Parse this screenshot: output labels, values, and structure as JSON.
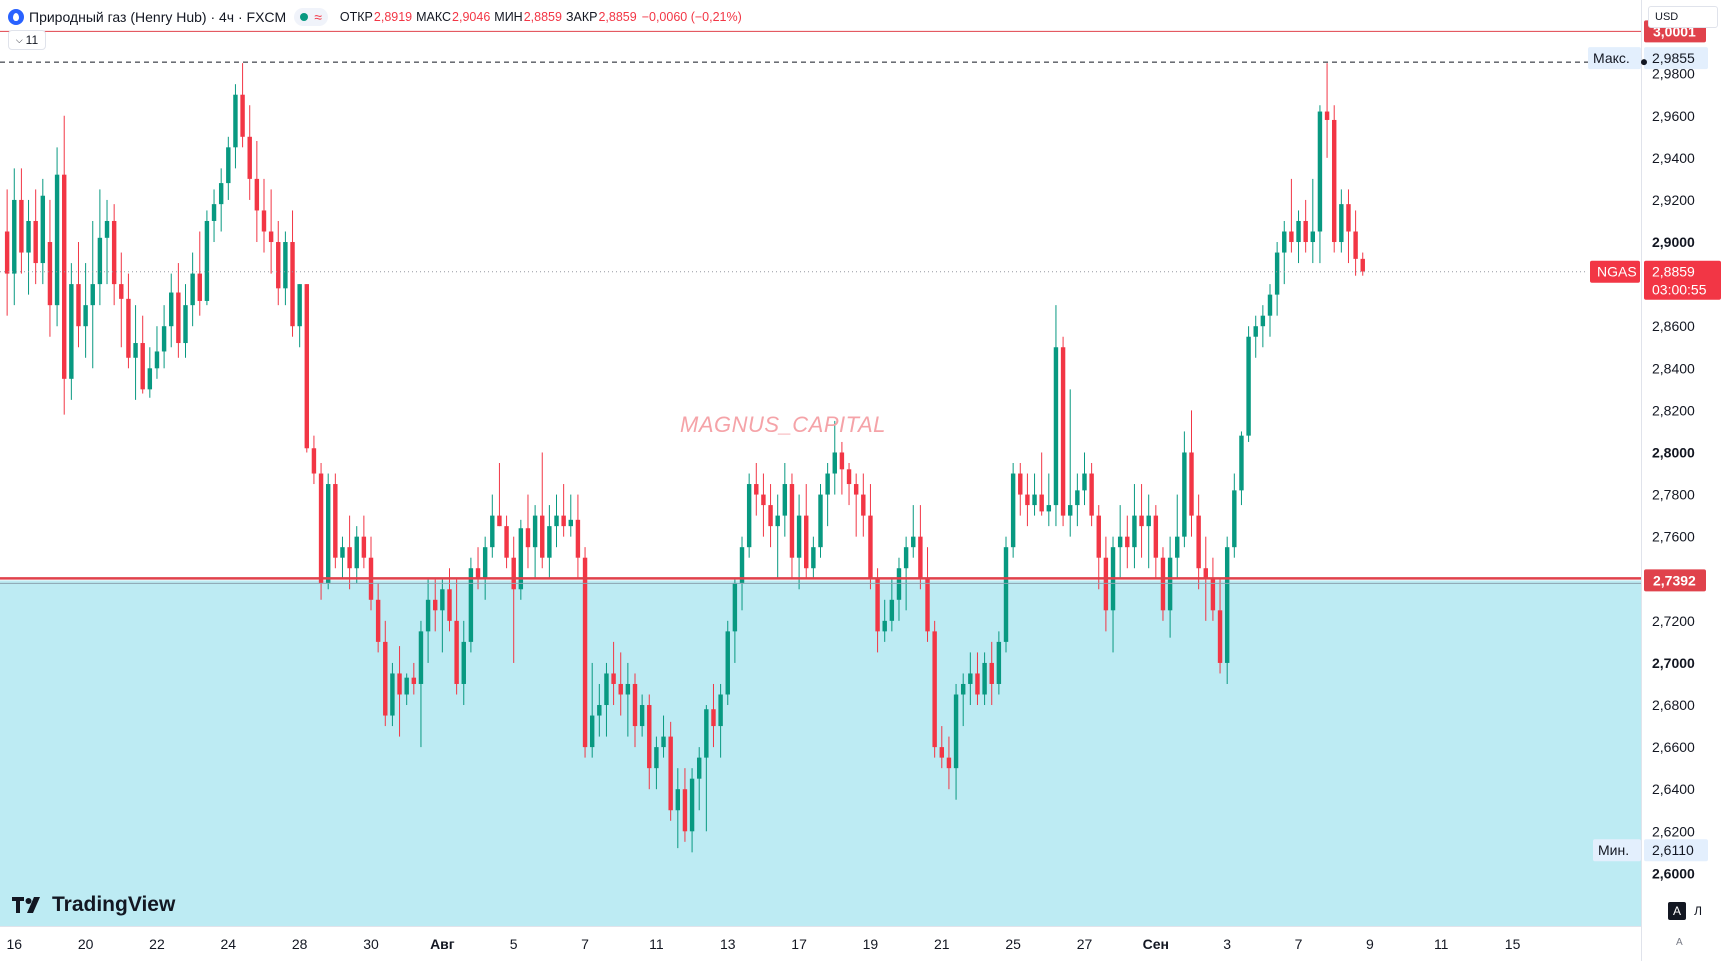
{
  "header": {
    "symbol_title": "Природный газ (Henry Hub) · 4ч · FXCM",
    "status_icon": "market-open-dot",
    "replay_icon": "approx-icon",
    "open_label": "ОТКР",
    "open_value": "2,8919",
    "high_label": "МАКС",
    "high_value": "2,9046",
    "low_label": "МИН",
    "low_value": "2,8859",
    "close_label": "ЗАКР",
    "close_value": "2,8859",
    "change": "−0,0060 (−0,21%)",
    "indicators_toggle": "11"
  },
  "currency": "USD",
  "watermark": "MAGNUS_CAPITAL",
  "logo": "TradingView",
  "scale_buttons": {
    "auto": "A",
    "log": "Л",
    "settings": "A"
  },
  "colors": {
    "up": "#089981",
    "down": "#f23645",
    "zone": "#bdebf3",
    "level": "#e0424c",
    "background": "#ffffff"
  },
  "chart_data": {
    "type": "candlestick",
    "y_range": [
      2.575,
      3.015
    ],
    "x_range": [
      -0.4,
      45.6
    ],
    "time_axis": {
      "labels": [
        "16",
        "20",
        "22",
        "24",
        "28",
        "30",
        "Авг",
        "5",
        "7",
        "11",
        "13",
        "17",
        "19",
        "21",
        "25",
        "27",
        "Сен",
        "3",
        "7",
        "9",
        "11",
        "15"
      ],
      "positions": [
        0,
        2,
        4,
        6,
        8,
        10,
        12,
        14,
        16,
        18,
        20,
        22,
        24,
        26,
        28,
        30,
        32,
        34,
        36,
        38,
        40,
        42
      ],
      "bold": [
        "Авг",
        "Сен"
      ]
    },
    "price_axis": {
      "ticks": [
        2.6,
        2.62,
        2.64,
        2.66,
        2.68,
        2.7,
        2.72,
        2.74,
        2.76,
        2.78,
        2.8,
        2.82,
        2.84,
        2.86,
        2.88,
        2.9,
        2.92,
        2.94,
        2.96,
        2.98
      ],
      "labels": [
        "2,6000",
        "2,6200",
        "2,6400",
        "2,6600",
        "2,6800",
        "2,7000",
        "2,7200",
        "2,7400",
        "2,7600",
        "2,7800",
        "2,8000",
        "2,8200",
        "2,8400",
        "2,8600",
        "2,8800",
        "2,9000",
        "2,9200",
        "2,9400",
        "2,9600",
        "2,9800"
      ],
      "bold": [
        "2,6000",
        "2,7000",
        "2,8000",
        "2,9000"
      ]
    },
    "levels": [
      {
        "name": "resistance",
        "value": 3.0001,
        "label": "3,0001"
      },
      {
        "name": "support",
        "value": 2.7392,
        "label": "2,7392"
      }
    ],
    "marks": {
      "high": {
        "label": "Макс.",
        "value": 2.9855,
        "text": "2,9855"
      },
      "low": {
        "label": "Мин.",
        "value": 2.611,
        "text": "2,6110"
      },
      "last": {
        "symbol": "NGAS",
        "value": 2.8859,
        "text": "2,8859",
        "countdown": "03:00:55"
      }
    },
    "candles": [
      [
        -0.2,
        2.905,
        2.925,
        2.865,
        2.885
      ],
      [
        0,
        2.885,
        2.935,
        2.87,
        2.92
      ],
      [
        0.2,
        2.92,
        2.935,
        2.885,
        2.895
      ],
      [
        0.4,
        2.895,
        2.92,
        2.875,
        2.91
      ],
      [
        0.6,
        2.91,
        2.925,
        2.88,
        2.89
      ],
      [
        0.8,
        2.89,
        2.93,
        2.88,
        2.922
      ],
      [
        1,
        2.9,
        2.92,
        2.855,
        2.87
      ],
      [
        1.2,
        2.87,
        2.945,
        2.86,
        2.932
      ],
      [
        1.4,
        2.932,
        2.96,
        2.818,
        2.835
      ],
      [
        1.6,
        2.835,
        2.89,
        2.825,
        2.88
      ],
      [
        1.8,
        2.88,
        2.9,
        2.85,
        2.86
      ],
      [
        2,
        2.86,
        2.89,
        2.845,
        2.87
      ],
      [
        2.2,
        2.87,
        2.91,
        2.84,
        2.88
      ],
      [
        2.4,
        2.88,
        2.925,
        2.87,
        2.902
      ],
      [
        2.6,
        2.902,
        2.92,
        2.88,
        2.91
      ],
      [
        2.8,
        2.91,
        2.918,
        2.87,
        2.88
      ],
      [
        3,
        2.88,
        2.895,
        2.85,
        2.873
      ],
      [
        3.2,
        2.873,
        2.885,
        2.84,
        2.845
      ],
      [
        3.4,
        2.845,
        2.87,
        2.825,
        2.852
      ],
      [
        3.6,
        2.852,
        2.865,
        2.828,
        2.83
      ],
      [
        3.8,
        2.83,
        2.85,
        2.826,
        2.84
      ],
      [
        4,
        2.84,
        2.86,
        2.835,
        2.848
      ],
      [
        4.2,
        2.848,
        2.87,
        2.84,
        2.86
      ],
      [
        4.4,
        2.86,
        2.885,
        2.85,
        2.876
      ],
      [
        4.6,
        2.876,
        2.89,
        2.845,
        2.852
      ],
      [
        4.8,
        2.852,
        2.88,
        2.845,
        2.87
      ],
      [
        5,
        2.87,
        2.895,
        2.86,
        2.885
      ],
      [
        5.2,
        2.885,
        2.905,
        2.865,
        2.872
      ],
      [
        5.4,
        2.872,
        2.915,
        2.87,
        2.91
      ],
      [
        5.6,
        2.91,
        2.925,
        2.9,
        2.918
      ],
      [
        5.8,
        2.918,
        2.935,
        2.905,
        2.928
      ],
      [
        6,
        2.928,
        2.95,
        2.92,
        2.945
      ],
      [
        6.2,
        2.945,
        2.975,
        2.935,
        2.97
      ],
      [
        6.4,
        2.97,
        2.985,
        2.945,
        2.95
      ],
      [
        6.6,
        2.95,
        2.965,
        2.92,
        2.93
      ],
      [
        6.8,
        2.93,
        2.948,
        2.9,
        2.915
      ],
      [
        7,
        2.915,
        2.93,
        2.895,
        2.905
      ],
      [
        7.2,
        2.905,
        2.925,
        2.885,
        2.9
      ],
      [
        7.4,
        2.9,
        2.91,
        2.87,
        2.878
      ],
      [
        7.6,
        2.878,
        2.905,
        2.87,
        2.9
      ],
      [
        7.8,
        2.9,
        2.915,
        2.855,
        2.86
      ],
      [
        8,
        2.86,
        2.88,
        2.85,
        2.88
      ],
      [
        8.2,
        2.88,
        2.88,
        2.8,
        2.802
      ],
      [
        8.4,
        2.802,
        2.808,
        2.785,
        2.79
      ],
      [
        8.6,
        2.79,
        2.795,
        2.73,
        2.738
      ],
      [
        8.8,
        2.738,
        2.79,
        2.735,
        2.785
      ],
      [
        9,
        2.785,
        2.79,
        2.745,
        2.75
      ],
      [
        9.2,
        2.75,
        2.76,
        2.74,
        2.755
      ],
      [
        9.4,
        2.755,
        2.77,
        2.735,
        2.745
      ],
      [
        9.6,
        2.745,
        2.765,
        2.738,
        2.76
      ],
      [
        9.8,
        2.76,
        2.77,
        2.745,
        2.75
      ],
      [
        10,
        2.75,
        2.76,
        2.725,
        2.73
      ],
      [
        10.2,
        2.73,
        2.738,
        2.705,
        2.71
      ],
      [
        10.4,
        2.71,
        2.72,
        2.67,
        2.675
      ],
      [
        10.6,
        2.675,
        2.7,
        2.67,
        2.695
      ],
      [
        10.8,
        2.695,
        2.708,
        2.665,
        2.685
      ],
      [
        11,
        2.685,
        2.695,
        2.68,
        2.693
      ],
      [
        11.2,
        2.693,
        2.7,
        2.685,
        2.69
      ],
      [
        11.4,
        2.69,
        2.72,
        2.66,
        2.715
      ],
      [
        11.6,
        2.715,
        2.74,
        2.7,
        2.73
      ],
      [
        11.8,
        2.73,
        2.74,
        2.715,
        2.725
      ],
      [
        12,
        2.725,
        2.74,
        2.705,
        2.735
      ],
      [
        12.2,
        2.735,
        2.745,
        2.715,
        2.72
      ],
      [
        12.4,
        2.72,
        2.74,
        2.685,
        2.69
      ],
      [
        12.6,
        2.69,
        2.72,
        2.68,
        2.71
      ],
      [
        12.8,
        2.71,
        2.75,
        2.705,
        2.745
      ],
      [
        13,
        2.745,
        2.755,
        2.735,
        2.74
      ],
      [
        13.2,
        2.74,
        2.76,
        2.73,
        2.755
      ],
      [
        13.4,
        2.755,
        2.78,
        2.75,
        2.77
      ],
      [
        13.6,
        2.77,
        2.795,
        2.765,
        2.765
      ],
      [
        13.8,
        2.765,
        2.77,
        2.745,
        2.75
      ],
      [
        14,
        2.75,
        2.76,
        2.7,
        2.735
      ],
      [
        14.2,
        2.735,
        2.768,
        2.73,
        2.764
      ],
      [
        14.4,
        2.764,
        2.78,
        2.745,
        2.755
      ],
      [
        14.6,
        2.755,
        2.775,
        2.74,
        2.77
      ],
      [
        14.8,
        2.77,
        2.8,
        2.745,
        2.75
      ],
      [
        15,
        2.75,
        2.775,
        2.74,
        2.765
      ],
      [
        15.2,
        2.765,
        2.78,
        2.755,
        2.77
      ],
      [
        15.4,
        2.77,
        2.785,
        2.76,
        2.765
      ],
      [
        15.6,
        2.765,
        2.78,
        2.76,
        2.768
      ],
      [
        15.8,
        2.768,
        2.78,
        2.74,
        2.75
      ],
      [
        16,
        2.75,
        2.755,
        2.655,
        2.66
      ],
      [
        16.2,
        2.66,
        2.7,
        2.655,
        2.675
      ],
      [
        16.4,
        2.675,
        2.69,
        2.665,
        2.68
      ],
      [
        16.6,
        2.68,
        2.7,
        2.665,
        2.695
      ],
      [
        16.8,
        2.695,
        2.71,
        2.68,
        2.69
      ],
      [
        17,
        2.69,
        2.705,
        2.675,
        2.685
      ],
      [
        17.2,
        2.685,
        2.7,
        2.665,
        2.69
      ],
      [
        17.4,
        2.69,
        2.695,
        2.66,
        2.67
      ],
      [
        17.6,
        2.67,
        2.685,
        2.665,
        2.68
      ],
      [
        17.8,
        2.68,
        2.685,
        2.64,
        2.65
      ],
      [
        18,
        2.65,
        2.665,
        2.64,
        2.66
      ],
      [
        18.2,
        2.66,
        2.675,
        2.655,
        2.665
      ],
      [
        18.4,
        2.665,
        2.672,
        2.625,
        2.63
      ],
      [
        18.6,
        2.63,
        2.65,
        2.612,
        2.64
      ],
      [
        18.8,
        2.64,
        2.65,
        2.615,
        2.62
      ],
      [
        19,
        2.62,
        2.65,
        2.61,
        2.645
      ],
      [
        19.2,
        2.645,
        2.66,
        2.63,
        2.655
      ],
      [
        19.4,
        2.655,
        2.68,
        2.62,
        2.678
      ],
      [
        19.6,
        2.678,
        2.69,
        2.66,
        2.67
      ],
      [
        19.8,
        2.67,
        2.69,
        2.655,
        2.685
      ],
      [
        20,
        2.685,
        2.72,
        2.68,
        2.715
      ],
      [
        20.2,
        2.715,
        2.74,
        2.7,
        2.738
      ],
      [
        20.4,
        2.738,
        2.76,
        2.725,
        2.755
      ],
      [
        20.6,
        2.755,
        2.79,
        2.75,
        2.785
      ],
      [
        20.8,
        2.785,
        2.795,
        2.77,
        2.78
      ],
      [
        21,
        2.78,
        2.79,
        2.76,
        2.775
      ],
      [
        21.2,
        2.775,
        2.785,
        2.755,
        2.765
      ],
      [
        21.4,
        2.765,
        2.78,
        2.74,
        2.77
      ],
      [
        21.6,
        2.77,
        2.795,
        2.76,
        2.785
      ],
      [
        21.8,
        2.785,
        2.79,
        2.74,
        2.75
      ],
      [
        22,
        2.75,
        2.78,
        2.735,
        2.77
      ],
      [
        22.2,
        2.77,
        2.785,
        2.74,
        2.745
      ],
      [
        22.4,
        2.745,
        2.76,
        2.74,
        2.755
      ],
      [
        22.6,
        2.755,
        2.785,
        2.75,
        2.78
      ],
      [
        22.8,
        2.78,
        2.795,
        2.765,
        2.79
      ],
      [
        23,
        2.79,
        2.815,
        2.78,
        2.8
      ],
      [
        23.2,
        2.8,
        2.805,
        2.78,
        2.792
      ],
      [
        23.4,
        2.792,
        2.795,
        2.775,
        2.785
      ],
      [
        23.6,
        2.785,
        2.79,
        2.76,
        2.78
      ],
      [
        23.8,
        2.78,
        2.79,
        2.76,
        2.77
      ],
      [
        24,
        2.77,
        2.785,
        2.735,
        2.74
      ],
      [
        24.2,
        2.74,
        2.745,
        2.705,
        2.715
      ],
      [
        24.4,
        2.715,
        2.73,
        2.71,
        2.72
      ],
      [
        24.6,
        2.72,
        2.74,
        2.715,
        2.73
      ],
      [
        24.8,
        2.73,
        2.75,
        2.72,
        2.745
      ],
      [
        25,
        2.745,
        2.76,
        2.725,
        2.755
      ],
      [
        25.2,
        2.755,
        2.775,
        2.75,
        2.76
      ],
      [
        25.4,
        2.76,
        2.775,
        2.735,
        2.74
      ],
      [
        25.6,
        2.74,
        2.755,
        2.71,
        2.715
      ],
      [
        25.8,
        2.715,
        2.72,
        2.655,
        2.66
      ],
      [
        26,
        2.66,
        2.67,
        2.65,
        2.655
      ],
      [
        26.2,
        2.655,
        2.665,
        2.64,
        2.65
      ],
      [
        26.4,
        2.65,
        2.69,
        2.635,
        2.685
      ],
      [
        26.6,
        2.685,
        2.695,
        2.67,
        2.69
      ],
      [
        26.8,
        2.69,
        2.705,
        2.68,
        2.695
      ],
      [
        27,
        2.695,
        2.705,
        2.68,
        2.685
      ],
      [
        27.2,
        2.685,
        2.705,
        2.68,
        2.7
      ],
      [
        27.4,
        2.7,
        2.71,
        2.68,
        2.69
      ],
      [
        27.6,
        2.69,
        2.715,
        2.685,
        2.71
      ],
      [
        27.8,
        2.71,
        2.76,
        2.705,
        2.755
      ],
      [
        28,
        2.755,
        2.795,
        2.75,
        2.79
      ],
      [
        28.2,
        2.79,
        2.795,
        2.77,
        2.78
      ],
      [
        28.4,
        2.78,
        2.79,
        2.765,
        2.775
      ],
      [
        28.6,
        2.775,
        2.79,
        2.77,
        2.78
      ],
      [
        28.8,
        2.78,
        2.8,
        2.77,
        2.772
      ],
      [
        29,
        2.772,
        2.79,
        2.765,
        2.775
      ],
      [
        29.2,
        2.775,
        2.87,
        2.765,
        2.85
      ],
      [
        29.4,
        2.85,
        2.855,
        2.765,
        2.77
      ],
      [
        29.6,
        2.77,
        2.83,
        2.76,
        2.775
      ],
      [
        29.8,
        2.775,
        2.79,
        2.765,
        2.782
      ],
      [
        30,
        2.782,
        2.8,
        2.775,
        2.79
      ],
      [
        30.2,
        2.79,
        2.795,
        2.765,
        2.77
      ],
      [
        30.4,
        2.77,
        2.775,
        2.735,
        2.75
      ],
      [
        30.6,
        2.75,
        2.76,
        2.715,
        2.725
      ],
      [
        30.8,
        2.725,
        2.76,
        2.705,
        2.755
      ],
      [
        31,
        2.755,
        2.775,
        2.74,
        2.76
      ],
      [
        31.2,
        2.76,
        2.77,
        2.745,
        2.755
      ],
      [
        31.4,
        2.755,
        2.785,
        2.745,
        2.77
      ],
      [
        31.6,
        2.77,
        2.785,
        2.75,
        2.765
      ],
      [
        31.8,
        2.765,
        2.78,
        2.745,
        2.77
      ],
      [
        32,
        2.77,
        2.775,
        2.74,
        2.75
      ],
      [
        32.2,
        2.75,
        2.755,
        2.72,
        2.725
      ],
      [
        32.4,
        2.725,
        2.76,
        2.712,
        2.75
      ],
      [
        32.6,
        2.75,
        2.78,
        2.74,
        2.76
      ],
      [
        32.8,
        2.76,
        2.81,
        2.755,
        2.8
      ],
      [
        33,
        2.8,
        2.82,
        2.76,
        2.77
      ],
      [
        33.2,
        2.77,
        2.78,
        2.735,
        2.745
      ],
      [
        33.4,
        2.745,
        2.76,
        2.72,
        2.74
      ],
      [
        33.6,
        2.74,
        2.75,
        2.72,
        2.725
      ],
      [
        33.8,
        2.725,
        2.74,
        2.695,
        2.7
      ],
      [
        34,
        2.7,
        2.76,
        2.69,
        2.755
      ],
      [
        34.2,
        2.755,
        2.79,
        2.75,
        2.782
      ],
      [
        34.4,
        2.782,
        2.81,
        2.775,
        2.808
      ],
      [
        34.6,
        2.808,
        2.86,
        2.805,
        2.855
      ],
      [
        34.8,
        2.855,
        2.865,
        2.845,
        2.86
      ],
      [
        35,
        2.86,
        2.87,
        2.85,
        2.865
      ],
      [
        35.2,
        2.865,
        2.88,
        2.855,
        2.875
      ],
      [
        35.4,
        2.875,
        2.9,
        2.865,
        2.895
      ],
      [
        35.6,
        2.895,
        2.91,
        2.88,
        2.905
      ],
      [
        35.8,
        2.905,
        2.93,
        2.895,
        2.9
      ],
      [
        36,
        2.9,
        2.915,
        2.89,
        2.91
      ],
      [
        36.2,
        2.91,
        2.92,
        2.895,
        2.9
      ],
      [
        36.4,
        2.9,
        2.93,
        2.89,
        2.905
      ],
      [
        36.6,
        2.905,
        2.965,
        2.89,
        2.962
      ],
      [
        36.8,
        2.962,
        2.985,
        2.94,
        2.958
      ],
      [
        37,
        2.958,
        2.965,
        2.895,
        2.9
      ],
      [
        37.2,
        2.9,
        2.925,
        2.895,
        2.918
      ],
      [
        37.4,
        2.918,
        2.925,
        2.89,
        2.905
      ],
      [
        37.6,
        2.905,
        2.915,
        2.884,
        2.892
      ],
      [
        37.8,
        2.892,
        2.895,
        2.884,
        2.886
      ]
    ]
  }
}
